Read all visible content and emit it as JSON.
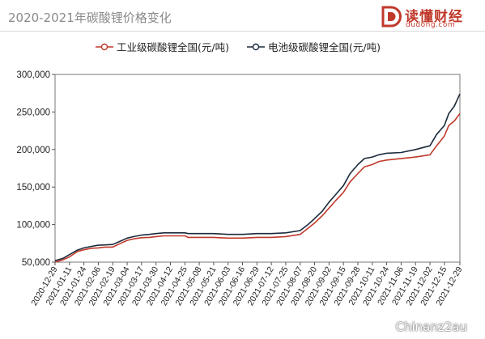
{
  "header": {
    "title": "2020-2021年碳酸锂价格变化"
  },
  "logo": {
    "name": "读懂财经",
    "domain": "dudong.com"
  },
  "watermark": "Chinanz2au",
  "colors": {
    "industrial": "#c0392b",
    "battery": "#1b2a3a",
    "axis": "#555555",
    "brand": "#c0392b"
  },
  "chart_data": {
    "type": "line",
    "title": "",
    "xlabel": "",
    "ylabel": "",
    "ylim": [
      50000,
      300000
    ],
    "y_ticks": [
      "50,000",
      "100,000",
      "150,000",
      "200,000",
      "250,000",
      "300,000"
    ],
    "legend_position": "top-center",
    "grid": false,
    "x_tick_labels": [
      "2020-12-29",
      "2021-01-11",
      "2021-01-24",
      "2021-02-06",
      "2021-02-19",
      "2021-03-04",
      "2021-03-17",
      "2021-03-30",
      "2021-04-12",
      "2021-04-25",
      "2021-05-08",
      "2021-05-21",
      "2021-06-03",
      "2021-06-16",
      "2021-06-29",
      "2021-07-12",
      "2021-07-25",
      "2021-08-07",
      "2021-08-20",
      "2021-09-02",
      "2021-09-15",
      "2021-09-28",
      "2021-10-11",
      "2021-10-24",
      "2021-11-06",
      "2021-11-19",
      "2021-12-02",
      "2021-12-15",
      "2021-12-29"
    ],
    "series": [
      {
        "name": "工业级碳酸锂全国(元/吨)",
        "points": [
          [
            "2020-12-29",
            50000
          ],
          [
            "2021-01-05",
            53000
          ],
          [
            "2021-01-11",
            57000
          ],
          [
            "2021-01-18",
            64000
          ],
          [
            "2021-01-24",
            66500
          ],
          [
            "2021-01-31",
            68500
          ],
          [
            "2021-02-06",
            69000
          ],
          [
            "2021-02-12",
            70000
          ],
          [
            "2021-02-19",
            70000
          ],
          [
            "2021-02-26",
            75000
          ],
          [
            "2021-03-04",
            79000
          ],
          [
            "2021-03-10",
            81000
          ],
          [
            "2021-03-17",
            82500
          ],
          [
            "2021-03-24",
            83000
          ],
          [
            "2021-03-30",
            84000
          ],
          [
            "2021-04-06",
            85000
          ],
          [
            "2021-04-12",
            85000
          ],
          [
            "2021-04-25",
            85000
          ],
          [
            "2021-04-28",
            83000
          ],
          [
            "2021-05-08",
            83000
          ],
          [
            "2021-05-21",
            83000
          ],
          [
            "2021-06-03",
            82000
          ],
          [
            "2021-06-16",
            82000
          ],
          [
            "2021-06-29",
            83000
          ],
          [
            "2021-07-12",
            83000
          ],
          [
            "2021-07-25",
            84000
          ],
          [
            "2021-08-07",
            87000
          ],
          [
            "2021-08-14",
            95000
          ],
          [
            "2021-08-20",
            102000
          ],
          [
            "2021-08-27",
            112000
          ],
          [
            "2021-09-02",
            122000
          ],
          [
            "2021-09-08",
            132000
          ],
          [
            "2021-09-15",
            143000
          ],
          [
            "2021-09-21",
            157000
          ],
          [
            "2021-09-28",
            168000
          ],
          [
            "2021-10-04",
            177000
          ],
          [
            "2021-10-11",
            180000
          ],
          [
            "2021-10-17",
            184000
          ],
          [
            "2021-10-24",
            186000
          ],
          [
            "2021-11-06",
            188000
          ],
          [
            "2021-11-19",
            190000
          ],
          [
            "2021-12-02",
            193000
          ],
          [
            "2021-12-08",
            205000
          ],
          [
            "2021-12-15",
            218000
          ],
          [
            "2021-12-19",
            232000
          ],
          [
            "2021-12-24",
            238000
          ],
          [
            "2021-12-29",
            248000
          ]
        ]
      },
      {
        "name": "电池级碳酸锂全国(元/吨)",
        "points": [
          [
            "2020-12-29",
            52000
          ],
          [
            "2021-01-05",
            55000
          ],
          [
            "2021-01-11",
            60000
          ],
          [
            "2021-01-18",
            66000
          ],
          [
            "2021-01-24",
            69000
          ],
          [
            "2021-01-31",
            71000
          ],
          [
            "2021-02-06",
            72500
          ],
          [
            "2021-02-12",
            73000
          ],
          [
            "2021-02-19",
            73500
          ],
          [
            "2021-02-26",
            78000
          ],
          [
            "2021-03-04",
            82000
          ],
          [
            "2021-03-10",
            84000
          ],
          [
            "2021-03-17",
            86000
          ],
          [
            "2021-03-24",
            87000
          ],
          [
            "2021-03-30",
            88000
          ],
          [
            "2021-04-06",
            89000
          ],
          [
            "2021-04-12",
            89000
          ],
          [
            "2021-04-25",
            89000
          ],
          [
            "2021-04-28",
            88000
          ],
          [
            "2021-05-08",
            88000
          ],
          [
            "2021-05-21",
            88000
          ],
          [
            "2021-06-03",
            87000
          ],
          [
            "2021-06-16",
            87000
          ],
          [
            "2021-06-29",
            88000
          ],
          [
            "2021-07-12",
            88000
          ],
          [
            "2021-07-25",
            89000
          ],
          [
            "2021-08-07",
            92000
          ],
          [
            "2021-08-14",
            100000
          ],
          [
            "2021-08-20",
            108000
          ],
          [
            "2021-08-27",
            118000
          ],
          [
            "2021-09-02",
            130000
          ],
          [
            "2021-09-08",
            140000
          ],
          [
            "2021-09-15",
            152000
          ],
          [
            "2021-09-21",
            168000
          ],
          [
            "2021-09-28",
            180000
          ],
          [
            "2021-10-04",
            188000
          ],
          [
            "2021-10-11",
            190000
          ],
          [
            "2021-10-17",
            193000
          ],
          [
            "2021-10-24",
            195000
          ],
          [
            "2021-11-06",
            196000
          ],
          [
            "2021-11-19",
            200000
          ],
          [
            "2021-12-02",
            205000
          ],
          [
            "2021-12-08",
            220000
          ],
          [
            "2021-12-15",
            232000
          ],
          [
            "2021-12-19",
            248000
          ],
          [
            "2021-12-24",
            258000
          ],
          [
            "2021-12-29",
            274000
          ]
        ]
      }
    ]
  }
}
